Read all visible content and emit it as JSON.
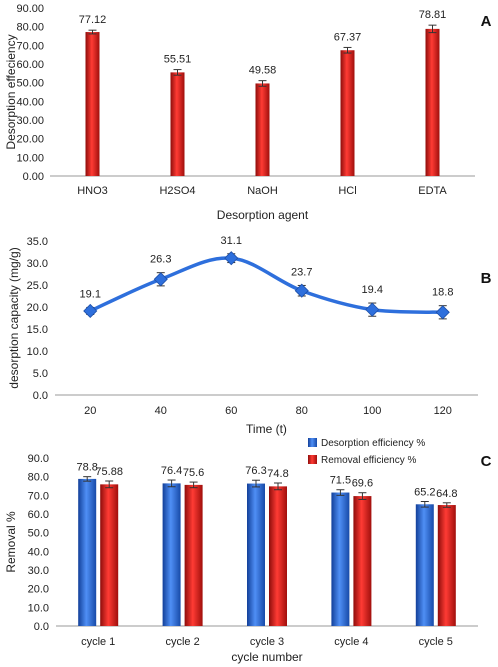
{
  "chart_data": [
    {
      "panel": "A",
      "type": "bar",
      "categories": [
        "HNO3",
        "H2SO4",
        "NaOH",
        "HCl",
        "EDTA"
      ],
      "values": [
        77.12,
        55.51,
        49.58,
        67.37,
        78.81
      ],
      "labels": [
        "77.12",
        "55.51",
        "49.58",
        "67.37",
        "78.81"
      ],
      "errors": [
        1.0,
        1.5,
        1.5,
        1.5,
        2.0
      ],
      "xlabel": "Desorption agent",
      "ylabel": "Desorption effeciency",
      "ylim": [
        0,
        90
      ],
      "yticks": [
        0,
        10,
        20,
        30,
        40,
        50,
        60,
        70,
        80,
        90
      ],
      "ytick_labels": [
        "0.00",
        "10.00",
        "20.00",
        "30.00",
        "40.00",
        "50.00",
        "60.00",
        "70.00",
        "80.00",
        "90.00"
      ],
      "color": "#e0201c",
      "grid": false
    },
    {
      "panel": "B",
      "type": "line",
      "x": [
        20,
        40,
        60,
        80,
        100,
        120
      ],
      "x_labels": [
        "20",
        "40",
        "60",
        "80",
        "100",
        "120"
      ],
      "values": [
        19.1,
        26.3,
        31.1,
        23.7,
        19.4,
        18.8
      ],
      "labels": [
        "19.1",
        "26.3",
        "31.1",
        "23.7",
        "19.4",
        "18.8"
      ],
      "errors": [
        0.8,
        1.5,
        1.0,
        1.2,
        1.5,
        1.5
      ],
      "xlabel": "Time (t)",
      "ylabel": "desorption capacity (mg/g)",
      "ylim": [
        0,
        35
      ],
      "yticks": [
        0,
        5,
        10,
        15,
        20,
        25,
        30,
        35
      ],
      "ytick_labels": [
        "0.0",
        "5.0",
        "10.0",
        "15.0",
        "20.0",
        "25.0",
        "30.0",
        "35.0"
      ],
      "color": "#2e6fdc",
      "smooth": true,
      "marker": "diamond",
      "grid": false
    },
    {
      "panel": "C",
      "type": "bar",
      "categories": [
        "cycle 1",
        "cycle 2",
        "cycle 3",
        "cycle 4",
        "cycle 5"
      ],
      "series": [
        {
          "name": "Desorption efficiency %",
          "values": [
            78.8,
            76.4,
            76.3,
            71.5,
            65.2
          ],
          "labels": [
            "78.8",
            "76.4",
            "76.3",
            "71.5",
            "65.2"
          ],
          "errors": [
            1.2,
            1.8,
            1.8,
            1.5,
            1.5
          ],
          "color": "#2f6fe0"
        },
        {
          "name": "Removal efficiency %",
          "values": [
            75.88,
            75.6,
            74.8,
            69.6,
            64.8
          ],
          "labels": [
            "75.88",
            "75.6",
            "74.8",
            "69.6",
            "64.8"
          ],
          "errors": [
            1.8,
            1.5,
            1.8,
            1.8,
            1.2
          ],
          "color": "#e0201c"
        }
      ],
      "xlabel": "cycle number",
      "ylabel": "Removal %",
      "ylim": [
        0,
        90
      ],
      "yticks": [
        0,
        10,
        20,
        30,
        40,
        50,
        60,
        70,
        80,
        90
      ],
      "ytick_labels": [
        "0.0",
        "10.0",
        "20.0",
        "30.0",
        "40.0",
        "50.0",
        "60.0",
        "70.0",
        "80.0",
        "90.0"
      ],
      "legend": "top-right",
      "grid": false
    }
  ]
}
